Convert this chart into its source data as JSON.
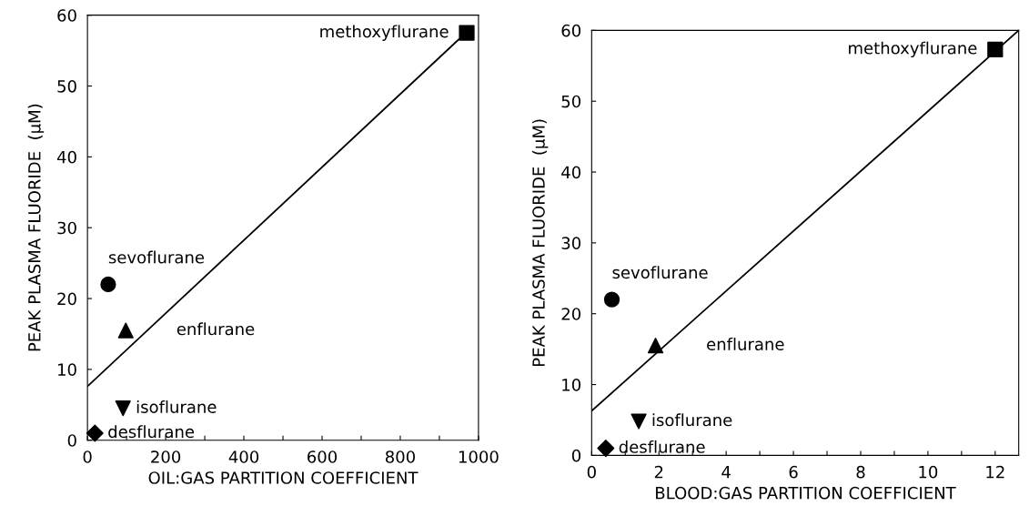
{
  "chart_data": [
    {
      "type": "scatter",
      "xlabel": "OIL:GAS PARTITION COEFFICIENT",
      "ylabel": "PEAK PLASMA FLUORIDE  (μM)",
      "xlim": [
        0,
        1000
      ],
      "ylim": [
        0,
        60
      ],
      "xticks": [
        0,
        {
          "value": 100,
          "label": null
        },
        200,
        {
          "value": 300,
          "label": null
        },
        400,
        {
          "value": 500,
          "label": null
        },
        600,
        {
          "value": 700,
          "label": null
        },
        800,
        {
          "value": 900,
          "label": null
        },
        1000
      ],
      "yticks": [
        0,
        10,
        20,
        30,
        40,
        50,
        60
      ],
      "grid": false,
      "legend": false,
      "series": [
        {
          "name": "methoxyflurane",
          "color": "#000000",
          "marker": "square",
          "x": [
            970
          ],
          "values": [
            57.5
          ]
        },
        {
          "name": "sevoflurane",
          "color": "#000000",
          "marker": "circle",
          "x": [
            53
          ],
          "values": [
            22
          ]
        },
        {
          "name": "enflurane",
          "color": "#000000",
          "marker": "triangle",
          "x": [
            98
          ],
          "values": [
            15.5
          ]
        },
        {
          "name": "isoflurane",
          "color": "#000000",
          "marker": "triangle_down",
          "x": [
            91
          ],
          "values": [
            4.5
          ]
        },
        {
          "name": "desflurane",
          "color": "#000000",
          "marker": "diamond",
          "x": [
            19
          ],
          "values": [
            1
          ]
        },
        {
          "type": "line",
          "color": "#000000",
          "x": [
            0,
            950
          ],
          "values": [
            7.6,
            56.6
          ]
        }
      ]
    },
    {
      "type": "scatter",
      "xlabel": "BLOOD:GAS PARTITION COEFFICIENT",
      "ylabel": "PEAK PLASMA FLUORIDE  (μM)",
      "xlim": [
        0,
        12.7
      ],
      "ylim": [
        0,
        60
      ],
      "xticks": [
        0,
        {
          "value": 1,
          "label": null
        },
        2,
        {
          "value": 3,
          "label": null
        },
        4,
        {
          "value": 5,
          "label": null
        },
        6,
        {
          "value": 7,
          "label": null
        },
        8,
        {
          "value": 9,
          "label": null
        },
        10,
        {
          "value": 11,
          "label": null
        },
        12
      ],
      "yticks": [
        0,
        10,
        20,
        30,
        40,
        50,
        60
      ],
      "grid": false,
      "legend": false,
      "series": [
        {
          "name": "methoxyflurane",
          "color": "#000000",
          "marker": "square",
          "x": [
            12
          ],
          "values": [
            57.3
          ]
        },
        {
          "name": "sevoflurane",
          "color": "#000000",
          "marker": "circle",
          "x": [
            0.6
          ],
          "values": [
            22
          ]
        },
        {
          "name": "enflurane",
          "color": "#000000",
          "marker": "triangle",
          "x": [
            1.9
          ],
          "values": [
            15.5
          ]
        },
        {
          "name": "isoflurane",
          "color": "#000000",
          "marker": "triangle_down",
          "x": [
            1.4
          ],
          "values": [
            4.8
          ]
        },
        {
          "name": "desflurane",
          "color": "#000000",
          "marker": "diamond",
          "x": [
            0.42
          ],
          "values": [
            1
          ]
        },
        {
          "type": "line",
          "color": "#000000",
          "x": [
            0,
            12.7
          ],
          "values": [
            6.3,
            60
          ]
        }
      ]
    }
  ]
}
